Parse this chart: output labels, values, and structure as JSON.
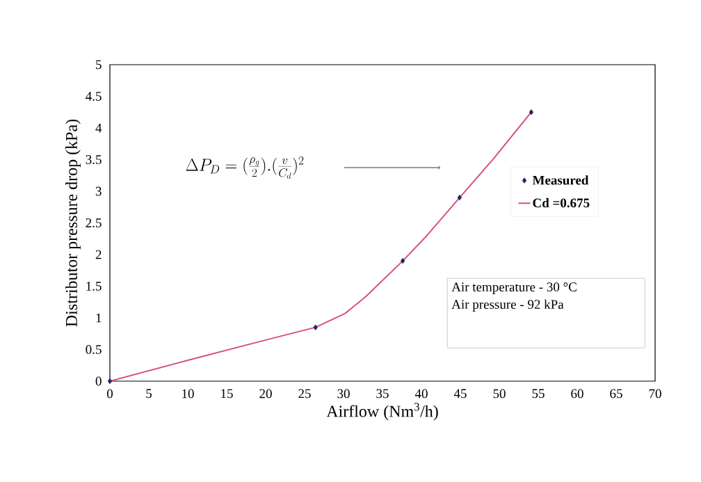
{
  "chart_data": {
    "type": "scatter",
    "xlabel": "Airflow (Nm$^{3}$/h)",
    "ylabel": "Distributor pressure drop (kPa)",
    "xlim": [
      0,
      70
    ],
    "xticks": [
      0,
      5,
      10,
      15,
      20,
      25,
      30,
      35,
      40,
      45,
      50,
      55,
      60,
      65,
      70
    ],
    "ylim": [
      0,
      5
    ],
    "yticks": [
      0,
      0.5,
      1,
      1.5,
      2,
      2.5,
      3,
      3.5,
      4,
      4.5,
      5
    ],
    "grid": false,
    "legend": "right",
    "series": [
      {
        "name": "Measured",
        "marker": "diamond",
        "color": "#1f2a5a",
        "x": [
          0,
          26.4,
          37.6,
          44.9,
          54.1
        ],
        "values": [
          0,
          0.85,
          1.9,
          2.9,
          4.25
        ]
      },
      {
        "name": "Cd =0.675",
        "type": "line",
        "marker": "none",
        "color": "#d9507a",
        "x": [
          0,
          10,
          20,
          26.4,
          30.2,
          32.8,
          37.6,
          40.7,
          44.9,
          49.3,
          54.1
        ],
        "values": [
          0,
          0.33,
          0.65,
          0.85,
          1.07,
          1.33,
          1.9,
          2.3,
          2.9,
          3.52,
          4.25
        ]
      }
    ],
    "annotations": [
      "\\Delta P_D = (\\frac{\\rho_g}{2}).(\\frac{v}{C_d})^2",
      "Air temperature  - 30 °C",
      "Air pressure -    92 kPa"
    ]
  }
}
